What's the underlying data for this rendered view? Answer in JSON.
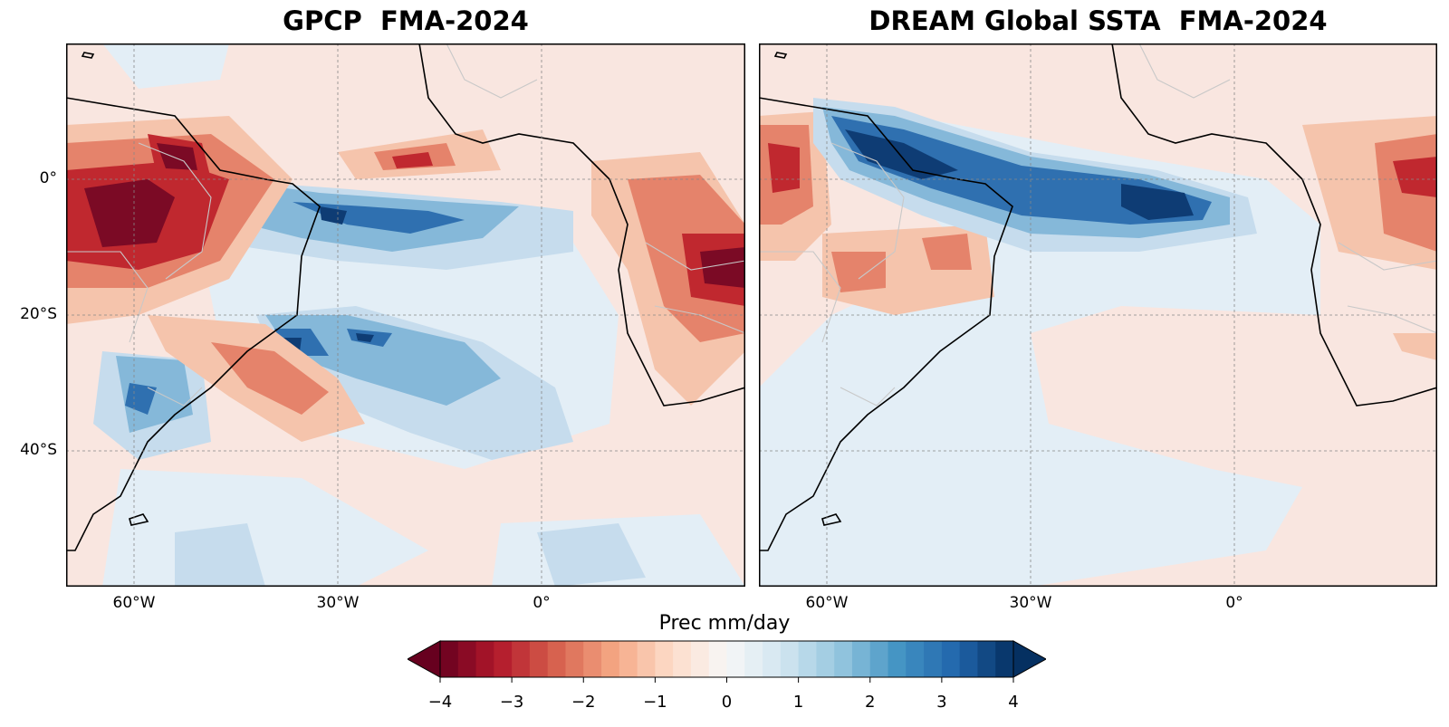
{
  "panels": [
    {
      "title": "GPCP  FMA-2024"
    },
    {
      "title": "DREAM Global SSTA  FMA-2024"
    }
  ],
  "lat_ticks": [
    "0°",
    "20°S",
    "40°S"
  ],
  "lon_ticks": [
    "60°W",
    "30°W",
    "0°"
  ],
  "colorbar": {
    "label": "Prec mm/day",
    "ticks": [
      "−4",
      "−3",
      "−2",
      "−1",
      "0",
      "1",
      "2",
      "3",
      "4"
    ],
    "min": -4,
    "max": 4,
    "steps": 32,
    "colormap": "RdBu",
    "extend": "both"
  },
  "colors": {
    "neg_strong": "#67001f",
    "neg_mid": "#d6604d",
    "neg_light": "#fbe3d6",
    "neutral": "#f7f7f7",
    "pos_light": "#e4eff6",
    "pos_mid": "#4393c3",
    "pos_strong": "#053061"
  }
}
